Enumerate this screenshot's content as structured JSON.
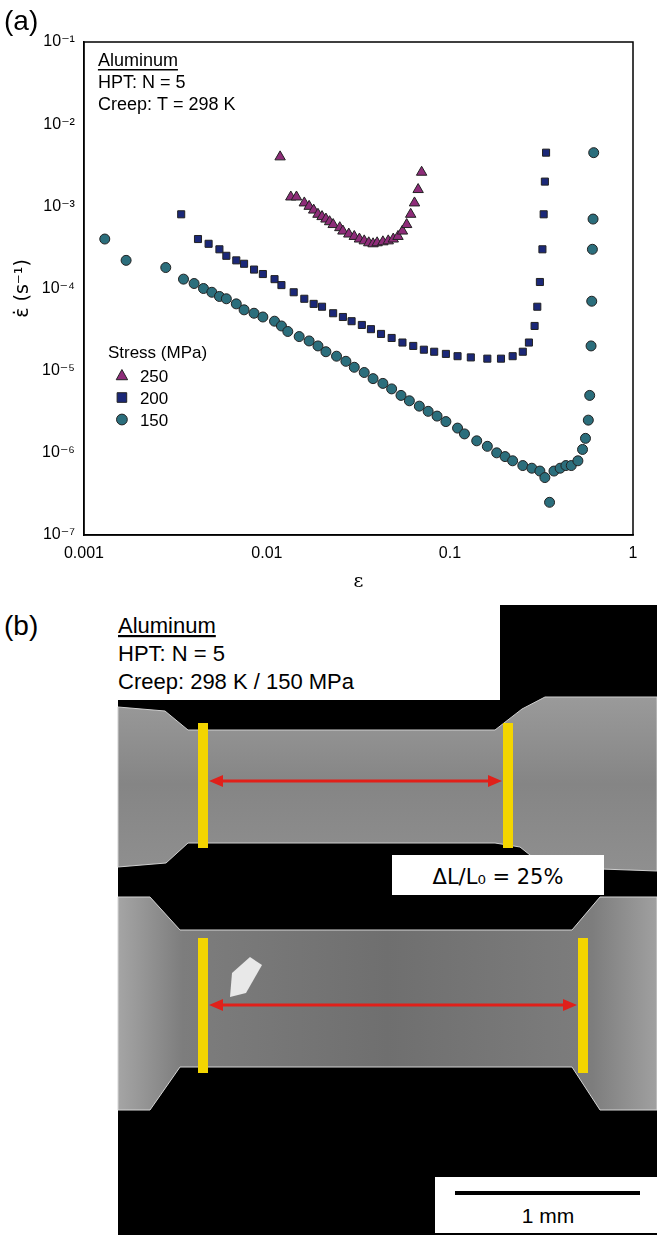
{
  "chart_data": {
    "type": "scatter",
    "panel_label": "(a)",
    "log": true,
    "grid": false,
    "legend": "lower left",
    "x_label": "ε",
    "y_label": "ε̇ (s⁻¹)",
    "annotations": [
      "Aluminum",
      "HPT: N = 5",
      "Creep: T = 298 K"
    ],
    "legend_title": "Stress (MPa)",
    "xlim": [
      0.001,
      1
    ],
    "xticks": [
      0.001,
      0.01,
      0.1,
      1
    ],
    "ylim": [
      1e-07,
      0.1
    ],
    "yticks": [
      {
        "value": 1e-07,
        "label": "10⁻⁷"
      },
      {
        "value": 1e-06,
        "label": "10⁻⁶"
      },
      {
        "value": 1e-05,
        "label": "10⁻⁵"
      },
      {
        "value": 0.0001,
        "label": "10⁻⁴"
      },
      {
        "value": 0.001,
        "label": "10⁻³"
      },
      {
        "value": 0.01,
        "label": "10⁻²"
      },
      {
        "value": 0.1,
        "label": "10⁻¹"
      }
    ],
    "series": [
      {
        "name": "250",
        "color": "#8e2c79",
        "marker": "triangle",
        "x": [
          0.0118,
          0.0135,
          0.0145,
          0.016,
          0.017,
          0.018,
          0.019,
          0.02,
          0.021,
          0.022,
          0.023,
          0.025,
          0.026,
          0.028,
          0.03,
          0.032,
          0.034,
          0.036,
          0.038,
          0.04,
          0.043,
          0.046,
          0.049,
          0.052,
          0.055,
          0.058,
          0.061,
          0.064,
          0.067,
          0.07
        ],
        "values": [
          0.004,
          0.0013,
          0.0013,
          0.0011,
          0.001,
          0.0009,
          0.0008,
          0.00075,
          0.0007,
          0.00065,
          0.0006,
          0.00055,
          0.0005,
          0.00046,
          0.00043,
          0.0004,
          0.00038,
          0.00036,
          0.00035,
          0.00036,
          0.00037,
          0.00038,
          0.0004,
          0.00043,
          0.0005,
          0.0006,
          0.0008,
          0.0011,
          0.0016,
          0.0026
        ]
      },
      {
        "name": "200",
        "color": "#1b2878",
        "marker": "square",
        "x": [
          0.0034,
          0.0042,
          0.0048,
          0.0055,
          0.006,
          0.0068,
          0.0075,
          0.0085,
          0.0095,
          0.011,
          0.012,
          0.014,
          0.016,
          0.018,
          0.02,
          0.023,
          0.026,
          0.029,
          0.033,
          0.037,
          0.042,
          0.048,
          0.055,
          0.063,
          0.072,
          0.082,
          0.095,
          0.11,
          0.13,
          0.16,
          0.19,
          0.22,
          0.25,
          0.27,
          0.29,
          0.3,
          0.31,
          0.32,
          0.325,
          0.33,
          0.335
        ],
        "values": [
          0.0008,
          0.0004,
          0.00035,
          0.0003,
          0.00025,
          0.00022,
          0.0002,
          0.00017,
          0.00015,
          0.00013,
          0.00011,
          9e-05,
          7.5e-05,
          6.5e-05,
          6e-05,
          5e-05,
          4.5e-05,
          4e-05,
          3.6e-05,
          3.2e-05,
          2.8e-05,
          2.5e-05,
          2.2e-05,
          2e-05,
          1.8e-05,
          1.7e-05,
          1.6e-05,
          1.5e-05,
          1.45e-05,
          1.4e-05,
          1.4e-05,
          1.5e-05,
          1.7e-05,
          2.2e-05,
          3.5e-05,
          6e-05,
          0.00012,
          0.0003,
          0.0008,
          0.002,
          0.0045
        ]
      },
      {
        "name": "150",
        "color": "#2b6e7c",
        "marker": "circle",
        "x": [
          0.0013,
          0.0017,
          0.0028,
          0.0035,
          0.004,
          0.0045,
          0.005,
          0.0055,
          0.006,
          0.0068,
          0.0075,
          0.0085,
          0.0095,
          0.011,
          0.012,
          0.013,
          0.015,
          0.017,
          0.019,
          0.021,
          0.024,
          0.027,
          0.03,
          0.034,
          0.038,
          0.043,
          0.048,
          0.054,
          0.06,
          0.068,
          0.076,
          0.085,
          0.095,
          0.11,
          0.12,
          0.14,
          0.16,
          0.18,
          0.2,
          0.22,
          0.25,
          0.28,
          0.31,
          0.33,
          0.35,
          0.37,
          0.4,
          0.43,
          0.46,
          0.5,
          0.53,
          0.55,
          0.57,
          0.58,
          0.59,
          0.595,
          0.6,
          0.605,
          0.61
        ],
        "values": [
          0.0004,
          0.00022,
          0.00018,
          0.00013,
          0.000115,
          0.0001,
          9e-05,
          8e-05,
          7.5e-05,
          6.5e-05,
          5.5e-05,
          5e-05,
          4.5e-05,
          4e-05,
          3.5e-05,
          3e-05,
          2.6e-05,
          2.3e-05,
          2e-05,
          1.7e-05,
          1.5e-05,
          1.3e-05,
          1.1e-05,
          9.5e-06,
          8e-06,
          7e-06,
          6e-06,
          5e-06,
          4.3e-06,
          3.7e-06,
          3.2e-06,
          2.8e-06,
          2.4e-06,
          2e-06,
          1.7e-06,
          1.4e-06,
          1.2e-06,
          1e-06,
          9e-07,
          8e-07,
          7e-07,
          6.5e-07,
          6e-07,
          5e-07,
          2.5e-07,
          6e-07,
          6.5e-07,
          7e-07,
          7e-07,
          8e-07,
          1.1e-06,
          1.5e-06,
          2.5e-06,
          5e-06,
          2e-05,
          7e-05,
          0.0003,
          0.0007,
          0.0045
        ]
      }
    ]
  },
  "image_panel": {
    "panel_label": "(b)",
    "texts": [
      "Aluminum",
      "HPT: N = 5",
      "Creep: 298 K / 150 MPa"
    ],
    "annotation": "ΔL/L₀ = 25%",
    "scale_bar": "1 mm"
  }
}
